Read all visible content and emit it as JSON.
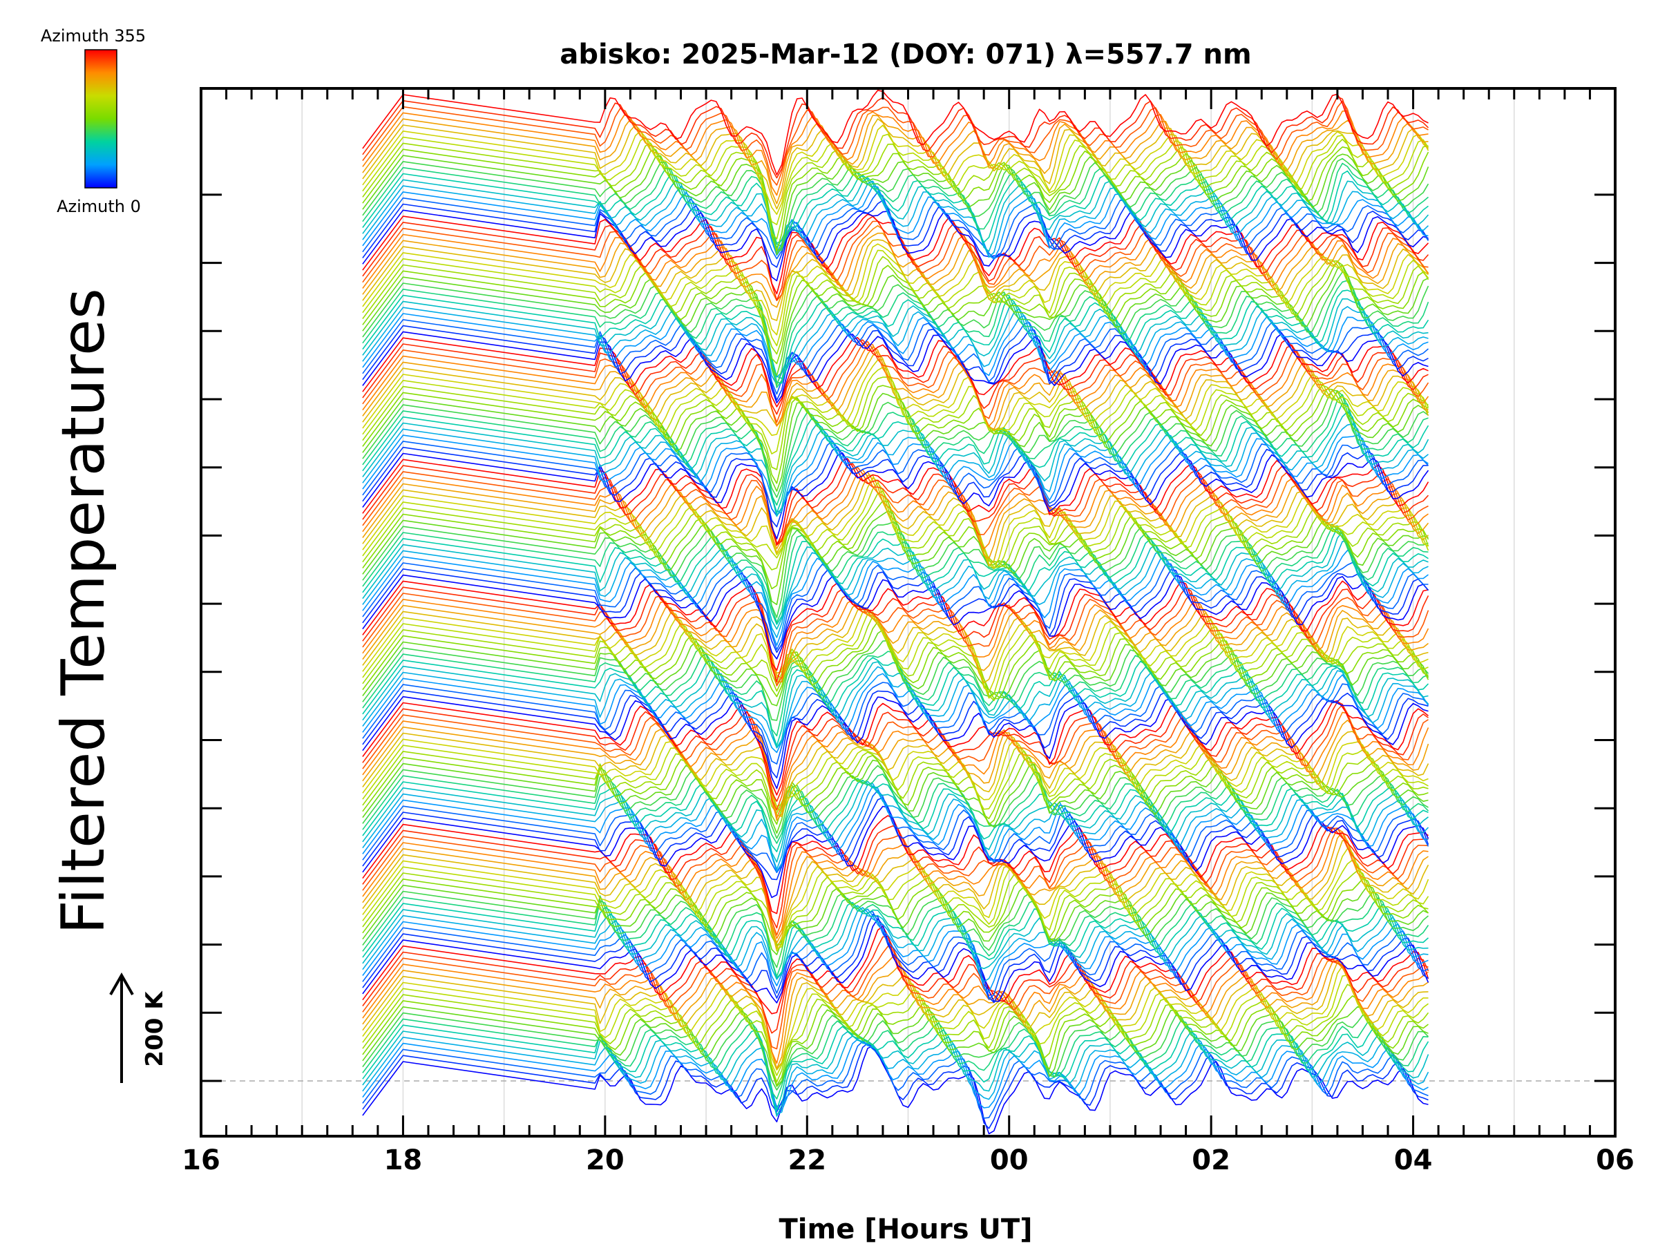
{
  "chart_data": {
    "type": "line",
    "title": "abisko: 2025-Mar-12 (DOY: 071) λ=557.7 nm",
    "xlabel": "Time [Hours UT]",
    "ylabel": "Filtered Temperatures",
    "x_ticks": [
      "16",
      "18",
      "20",
      "22",
      "00",
      "02",
      "04",
      "06"
    ],
    "x_tick_hours": [
      16,
      18,
      20,
      22,
      24,
      26,
      28,
      30
    ],
    "xlim": [
      16,
      30
    ],
    "scale_bar": "200 K",
    "colorbar": {
      "max_label": "Azimuth 355",
      "min_label": "Azimuth 0",
      "colors": [
        "#0000ff",
        "#00a0ff",
        "#00d2a0",
        "#78dc00",
        "#c8dc00",
        "#ff8c00",
        "#ff0000"
      ]
    },
    "series_description": {
      "n_series": 160,
      "azimuth_range": [
        0,
        355
      ],
      "azimuth_cycles": 8,
      "start_hour": 17.6,
      "end_hour": 28.2,
      "gap_hours": [
        18.0,
        19.9
      ],
      "notable_dips_hours": [
        21.7,
        23.8,
        24.4
      ],
      "color_order": "azimuth 0 (blue) to azimuth 355 (red), repeating per range block"
    }
  }
}
